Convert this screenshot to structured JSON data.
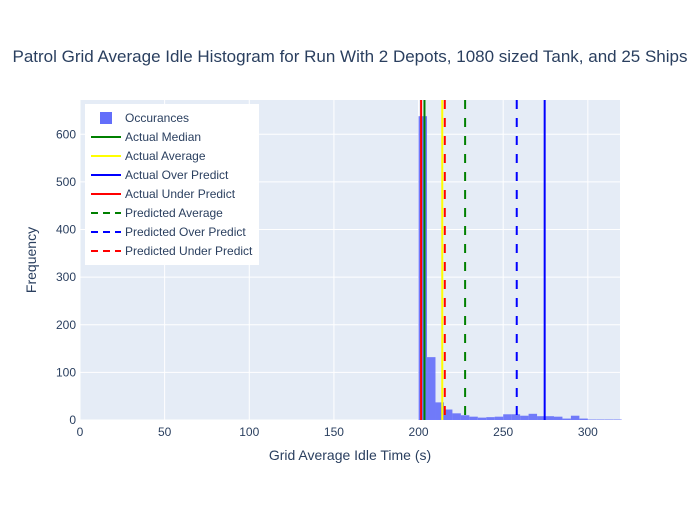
{
  "chart_data": {
    "type": "bar",
    "title": "Patrol Grid Average Idle Histogram for Run With 2 Depots, 1080 sized Tank, and 25 Ships",
    "xlabel": "Grid Average Idle Time (s)",
    "ylabel": "Frequency",
    "xlim": [
      0,
      319
    ],
    "ylim": [
      0,
      672
    ],
    "x_ticks": [
      0,
      50,
      100,
      150,
      200,
      250,
      300
    ],
    "y_ticks": [
      0,
      100,
      200,
      300,
      400,
      500,
      600
    ],
    "grid": true,
    "legend_position": "top-left",
    "bin_width": 5,
    "histogram": {
      "name": "Occurances",
      "color": "#636efa",
      "bin_starts": [
        200,
        205,
        210,
        215,
        220,
        225,
        230,
        235,
        240,
        245,
        250,
        255,
        260,
        265,
        270,
        275,
        280,
        285,
        290,
        295,
        300,
        305,
        310,
        315
      ],
      "counts": [
        638,
        132,
        37,
        22,
        14,
        10,
        7,
        5,
        6,
        7,
        12,
        12,
        9,
        13,
        8,
        8,
        7,
        3,
        9,
        3,
        1,
        1,
        1,
        1
      ]
    },
    "series": [
      {
        "name": "Actual Median",
        "value": 203.5,
        "color": "#008000",
        "dash": "solid"
      },
      {
        "name": "Actual Average",
        "value": 214,
        "color": "#ffff00",
        "dash": "solid"
      },
      {
        "name": "Actual Over Predict",
        "value": 274.5,
        "color": "#0000ff",
        "dash": "solid"
      },
      {
        "name": "Actual Under Predict",
        "value": 201.5,
        "color": "#ff0000",
        "dash": "solid"
      },
      {
        "name": "Predicted Average",
        "value": 227.5,
        "color": "#008000",
        "dash": "dash"
      },
      {
        "name": "Predicted Over Predict",
        "value": 258,
        "color": "#0000ff",
        "dash": "dash"
      },
      {
        "name": "Predicted Under Predict",
        "value": 215.5,
        "color": "#ff0000",
        "dash": "dash"
      }
    ]
  },
  "colors": {
    "plot_bg": "#e5ecf6",
    "grid": "#ffffff",
    "text": "#2a3f5f"
  }
}
